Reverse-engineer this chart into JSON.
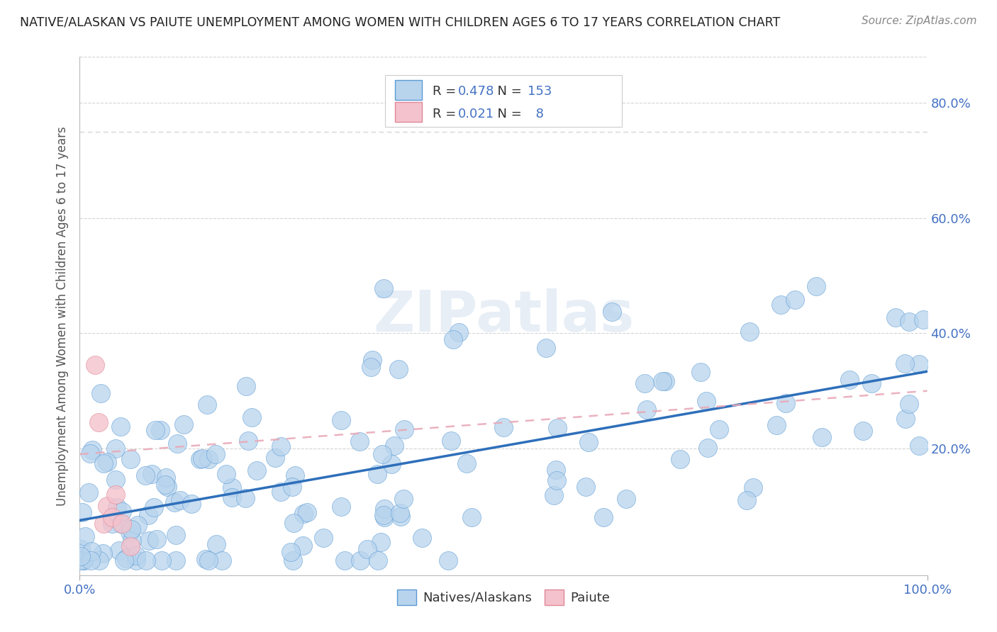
{
  "title": "NATIVE/ALASKAN VS PAIUTE UNEMPLOYMENT AMONG WOMEN WITH CHILDREN AGES 6 TO 17 YEARS CORRELATION CHART",
  "source": "Source: ZipAtlas.com",
  "ylabel": "Unemployment Among Women with Children Ages 6 to 17 years",
  "color_native": "#b8d4ed",
  "color_native_edge": "#5b9bd5",
  "color_paiute": "#f4c2cc",
  "color_paiute_edge": "#e08898",
  "color_line_native": "#2e6fba",
  "color_line_paiute": "#e8aab8",
  "color_text_blue": "#4472c4",
  "color_tick": "#4472c4",
  "bg_color": "#ffffff",
  "grid_color": "#d0d0d0",
  "watermark_color": "#d8e4f0",
  "title_color": "#222222",
  "source_color": "#888888",
  "ylabel_color": "#555555"
}
